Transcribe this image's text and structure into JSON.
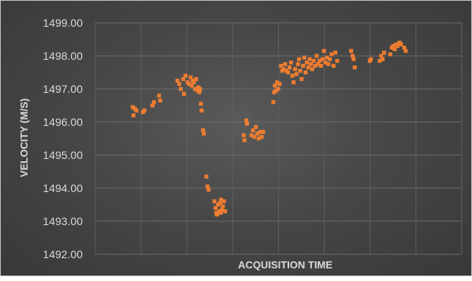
{
  "chart_data": {
    "type": "scatter",
    "title": "",
    "xlabel": "ACQUISITION TIME",
    "ylabel": "VELOCITY (M/S)",
    "ylim": [
      1492.0,
      1499.0
    ],
    "y_ticks": [
      "1492.00",
      "1493.00",
      "1494.00",
      "1495.00",
      "1496.00",
      "1497.00",
      "1498.00",
      "1499.00"
    ],
    "x_tick_labels": [],
    "xlim": [
      0,
      100
    ],
    "grid": true,
    "marker_color": "#ed7d31",
    "series": [
      {
        "points": [
          [
            10.2,
            1496.45
          ],
          [
            10.4,
            1496.2
          ],
          [
            10.8,
            1496.4
          ],
          [
            11.2,
            1496.35
          ],
          [
            13.0,
            1496.3
          ],
          [
            13.4,
            1496.35
          ],
          [
            15.6,
            1496.5
          ],
          [
            16.0,
            1496.6
          ],
          [
            17.4,
            1496.8
          ],
          [
            17.7,
            1496.65
          ],
          [
            22.4,
            1497.25
          ],
          [
            22.9,
            1497.15
          ],
          [
            23.3,
            1497.0
          ],
          [
            24.0,
            1497.3
          ],
          [
            24.2,
            1496.85
          ],
          [
            24.6,
            1497.4
          ],
          [
            25.2,
            1497.2
          ],
          [
            25.6,
            1497.15
          ],
          [
            26.0,
            1497.35
          ],
          [
            26.3,
            1497.1
          ],
          [
            26.6,
            1497.25
          ],
          [
            26.9,
            1497.2
          ],
          [
            27.2,
            1497.0
          ],
          [
            27.5,
            1497.3
          ],
          [
            27.9,
            1496.95
          ],
          [
            28.1,
            1497.05
          ],
          [
            28.4,
            1496.9
          ],
          [
            28.6,
            1497.0
          ],
          [
            28.8,
            1496.55
          ],
          [
            29.0,
            1496.35
          ],
          [
            29.4,
            1495.75
          ],
          [
            29.6,
            1495.65
          ],
          [
            30.3,
            1494.35
          ],
          [
            30.6,
            1494.05
          ],
          [
            30.9,
            1493.95
          ],
          [
            32.5,
            1493.6
          ],
          [
            32.8,
            1493.4
          ],
          [
            33.0,
            1493.25
          ],
          [
            33.2,
            1493.2
          ],
          [
            33.5,
            1493.5
          ],
          [
            33.8,
            1493.3
          ],
          [
            34.0,
            1493.55
          ],
          [
            34.3,
            1493.65
          ],
          [
            34.5,
            1493.35
          ],
          [
            34.8,
            1493.45
          ],
          [
            35.1,
            1493.6
          ],
          [
            35.4,
            1493.3
          ],
          [
            34.2,
            1493.25
          ],
          [
            40.5,
            1495.6
          ],
          [
            40.7,
            1495.45
          ],
          [
            41.2,
            1496.05
          ],
          [
            41.4,
            1495.95
          ],
          [
            42.6,
            1495.6
          ],
          [
            43.0,
            1495.75
          ],
          [
            43.4,
            1495.55
          ],
          [
            43.8,
            1495.85
          ],
          [
            44.2,
            1495.65
          ],
          [
            44.6,
            1495.5
          ],
          [
            45.0,
            1495.7
          ],
          [
            45.4,
            1495.55
          ],
          [
            45.8,
            1495.7
          ],
          [
            48.6,
            1496.6
          ],
          [
            48.8,
            1496.9
          ],
          [
            49.0,
            1497.1
          ],
          [
            49.3,
            1496.95
          ],
          [
            49.6,
            1497.2
          ],
          [
            49.9,
            1497.0
          ],
          [
            50.3,
            1497.15
          ],
          [
            50.7,
            1497.7
          ],
          [
            51.0,
            1497.55
          ],
          [
            51.4,
            1497.6
          ],
          [
            51.8,
            1497.75
          ],
          [
            52.2,
            1497.55
          ],
          [
            52.6,
            1497.5
          ],
          [
            53.0,
            1497.65
          ],
          [
            53.4,
            1497.8
          ],
          [
            53.8,
            1497.4
          ],
          [
            54.1,
            1497.2
          ],
          [
            54.5,
            1497.6
          ],
          [
            54.9,
            1497.45
          ],
          [
            55.3,
            1497.75
          ],
          [
            55.6,
            1497.9
          ],
          [
            55.9,
            1497.55
          ],
          [
            56.3,
            1497.3
          ],
          [
            56.7,
            1497.7
          ],
          [
            57.0,
            1497.95
          ],
          [
            57.4,
            1497.5
          ],
          [
            57.7,
            1497.8
          ],
          [
            58.1,
            1497.65
          ],
          [
            58.5,
            1497.9
          ],
          [
            58.8,
            1497.75
          ],
          [
            59.2,
            1497.6
          ],
          [
            59.6,
            1497.85
          ],
          [
            60.0,
            1497.7
          ],
          [
            60.4,
            1498.0
          ],
          [
            60.8,
            1497.75
          ],
          [
            61.2,
            1497.85
          ],
          [
            61.6,
            1497.7
          ],
          [
            62.0,
            1497.9
          ],
          [
            62.4,
            1498.15
          ],
          [
            62.8,
            1497.8
          ],
          [
            63.2,
            1497.95
          ],
          [
            63.6,
            1497.75
          ],
          [
            64.0,
            1497.9
          ],
          [
            64.5,
            1498.05
          ],
          [
            65.0,
            1497.7
          ],
          [
            65.5,
            1498.1
          ],
          [
            66.0,
            1497.85
          ],
          [
            69.8,
            1498.15
          ],
          [
            70.2,
            1498.0
          ],
          [
            70.5,
            1497.9
          ],
          [
            70.8,
            1497.65
          ],
          [
            74.9,
            1497.85
          ],
          [
            75.2,
            1497.9
          ],
          [
            77.6,
            1497.85
          ],
          [
            78.0,
            1498.0
          ],
          [
            78.4,
            1497.9
          ],
          [
            78.8,
            1498.1
          ],
          [
            80.5,
            1498.05
          ],
          [
            80.9,
            1498.25
          ],
          [
            81.3,
            1498.3
          ],
          [
            81.7,
            1498.2
          ],
          [
            82.1,
            1498.35
          ],
          [
            82.5,
            1498.3
          ],
          [
            83.0,
            1498.4
          ],
          [
            83.4,
            1498.35
          ],
          [
            84.3,
            1498.25
          ],
          [
            84.7,
            1498.15
          ]
        ]
      }
    ]
  }
}
